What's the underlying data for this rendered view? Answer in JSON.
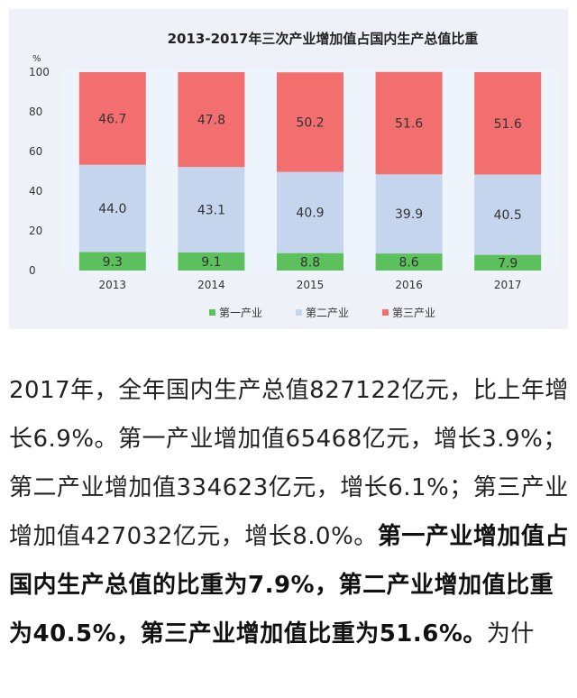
{
  "chart_data": {
    "type": "bar",
    "stacked": true,
    "title": "2013-2017年三次产业增加值占国内生产总值比重",
    "ylabel": "%",
    "ylim": [
      0,
      100
    ],
    "yticks": [
      "0",
      "20",
      "40",
      "60",
      "80",
      "100"
    ],
    "categories": [
      "2013",
      "2014",
      "2015",
      "2016",
      "2017"
    ],
    "series": [
      {
        "name": "第一产业",
        "color": "#5cc15c",
        "values": [
          9.3,
          9.1,
          8.8,
          8.6,
          7.9
        ]
      },
      {
        "name": "第二产业",
        "color": "#c5d5ed",
        "values": [
          44.0,
          43.1,
          40.9,
          39.9,
          40.5
        ]
      },
      {
        "name": "第三产业",
        "color": "#f36e6e",
        "values": [
          46.7,
          47.8,
          50.2,
          51.6,
          51.6
        ]
      }
    ],
    "value_labels": [
      [
        "9.3",
        "9.1",
        "8.8",
        "8.6",
        "7.9"
      ],
      [
        "44.0",
        "43.1",
        "40.9",
        "39.9",
        "40.5"
      ],
      [
        "46.7",
        "47.8",
        "50.2",
        "51.6",
        "51.6"
      ]
    ],
    "legend": "bottom",
    "grid": false
  },
  "article": {
    "p1": "2017年，全年国内生产总值827122亿元，比上年增长6.9%。第一产业增加值65468亿元，增长3.9%；第二产业增加值334623亿元，增长6.1%；第三产业增加值427032亿元，增长8.0%。",
    "p2": "第一产业增加值占国内生产总值的比重为7.9%，第二产业增加值比重为40.5%，第三产业增加值比重为51.6%。",
    "p3": "为什"
  }
}
